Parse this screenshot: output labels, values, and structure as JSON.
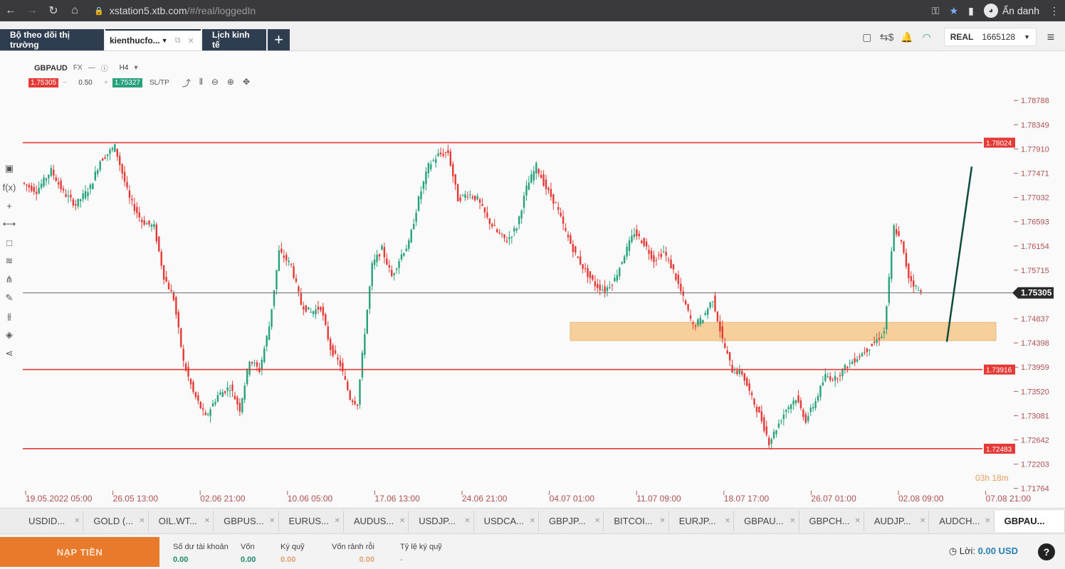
{
  "browser": {
    "url_host": "xstation5.xtb.com",
    "url_path": "/#/real/loggedIn",
    "profile_label": "Ẩn danh"
  },
  "appbar": {
    "tab_market": "Bộ theo dõi thị trường",
    "tab_user": "kienthucfo...",
    "tab_calendar": "Lịch kinh tế",
    "add_tab": "+",
    "account_type": "REAL",
    "account_number": "1665128"
  },
  "chart": {
    "symbol": "GBPAUD",
    "market": "FX",
    "timeframe": "H4",
    "sell_price": "1.75305",
    "buy_price": "1.75327",
    "volume": "0.50",
    "sltp_label": "SL/TP",
    "timer": "03h 18m"
  },
  "chart_data": {
    "type": "candlestick",
    "title": "",
    "ylim": [
      1.7176,
      1.7901
    ],
    "price_ticks": [
      "1.78788",
      "1.78349",
      "1.77910",
      "1.77471",
      "1.77032",
      "1.76593",
      "1.76154",
      "1.75715",
      "1.75305",
      "1.74837",
      "1.74398",
      "1.73959",
      "1.73520",
      "1.73081",
      "1.72642",
      "1.72203",
      "1.71764"
    ],
    "time_ticks": [
      "19.05.2022 05:00",
      "26.05 13:00",
      "02.06 21:00",
      "10.06 05:00",
      "17.06 13:00",
      "24.06 21:00",
      "04.07 01:00",
      "11.07 09:00",
      "18.07 17:00",
      "26.07 01:00",
      "02.08 09:00",
      "07.08 21:00"
    ],
    "horizontal_levels": [
      {
        "value": 1.78024,
        "label": "1.78024",
        "color": "#e53935"
      },
      {
        "value": 1.73916,
        "label": "1.73916",
        "color": "#e53935"
      },
      {
        "value": 1.72483,
        "label": "1.72483",
        "color": "#e53935"
      }
    ],
    "current_price": {
      "value": 1.75305,
      "label": "1.75305"
    },
    "zone": {
      "from": 1.7444,
      "to": 1.7477,
      "color": "#f5c17a"
    },
    "path_points": [
      [
        0,
        1.773
      ],
      [
        6,
        1.7715
      ],
      [
        12,
        1.7752
      ],
      [
        17,
        1.7712
      ],
      [
        22,
        1.769
      ],
      [
        28,
        1.7722
      ],
      [
        32,
        1.777
      ],
      [
        38,
        1.7795
      ],
      [
        44,
        1.77
      ],
      [
        49,
        1.766
      ],
      [
        54,
        1.765
      ],
      [
        58,
        1.756
      ],
      [
        62,
        1.752
      ],
      [
        66,
        1.7405
      ],
      [
        70,
        1.735
      ],
      [
        75,
        1.7305
      ],
      [
        80,
        1.7345
      ],
      [
        85,
        1.736
      ],
      [
        89,
        1.732
      ],
      [
        93,
        1.741
      ],
      [
        97,
        1.739
      ],
      [
        101,
        1.747
      ],
      [
        105,
        1.7605
      ],
      [
        110,
        1.758
      ],
      [
        114,
        1.751
      ],
      [
        118,
        1.7495
      ],
      [
        122,
        1.7505
      ],
      [
        126,
        1.743
      ],
      [
        130,
        1.74
      ],
      [
        134,
        1.734
      ],
      [
        137,
        1.733
      ],
      [
        140,
        1.746
      ],
      [
        143,
        1.758
      ],
      [
        147,
        1.761
      ],
      [
        151,
        1.756
      ],
      [
        155,
        1.76
      ],
      [
        158,
        1.762
      ],
      [
        162,
        1.77
      ],
      [
        166,
        1.776
      ],
      [
        170,
        1.778
      ],
      [
        174,
        1.7785
      ],
      [
        178,
        1.77
      ],
      [
        182,
        1.771
      ],
      [
        186,
        1.77
      ],
      [
        190,
        1.7665
      ],
      [
        194,
        1.764
      ],
      [
        198,
        1.7625
      ],
      [
        202,
        1.765
      ],
      [
        206,
        1.772
      ],
      [
        210,
        1.776
      ],
      [
        214,
        1.772
      ],
      [
        218,
        1.769
      ],
      [
        222,
        1.764
      ],
      [
        226,
        1.76
      ],
      [
        230,
        1.757
      ],
      [
        234,
        1.7545
      ],
      [
        238,
        1.7535
      ],
      [
        242,
        1.7555
      ],
      [
        246,
        1.76
      ],
      [
        250,
        1.764
      ],
      [
        254,
        1.762
      ],
      [
        258,
        1.759
      ],
      [
        262,
        1.7605
      ],
      [
        266,
        1.757
      ],
      [
        270,
        1.752
      ],
      [
        274,
        1.747
      ],
      [
        278,
        1.7485
      ],
      [
        282,
        1.752
      ],
      [
        286,
        1.7445
      ],
      [
        290,
        1.739
      ],
      [
        294,
        1.7385
      ],
      [
        298,
        1.734
      ],
      [
        302,
        1.73
      ],
      [
        305,
        1.726
      ],
      [
        308,
        1.7285
      ],
      [
        312,
        1.732
      ],
      [
        316,
        1.734
      ],
      [
        320,
        1.73
      ],
      [
        324,
        1.7335
      ],
      [
        328,
        1.738
      ],
      [
        332,
        1.7375
      ],
      [
        336,
        1.7395
      ],
      [
        340,
        1.741
      ],
      [
        344,
        1.7425
      ],
      [
        348,
        1.744
      ],
      [
        352,
        1.746
      ],
      [
        356,
        1.765
      ],
      [
        359,
        1.762
      ],
      [
        362,
        1.756
      ],
      [
        365,
        1.754
      ],
      [
        367,
        1.753
      ]
    ]
  },
  "symbols": [
    "USDID...",
    "GOLD (...",
    "OIL.WT...",
    "GBPUS...",
    "EURUS...",
    "AUDUS...",
    "USDJP...",
    "USDCA...",
    "GBPJP...",
    "BITCOI...",
    "EURJP...",
    "GBPAU...",
    "GBPCH...",
    "AUDJP...",
    "AUDCH...",
    "GBPAU..."
  ],
  "bottom": {
    "deposit": "NẠP TIỀN",
    "balance_label": "Số dư tài khoản",
    "balance_value": "0.00",
    "equity_label": "Vốn",
    "equity_value": "0.00",
    "margin_label": "Ký quỹ",
    "margin_value": "0.00",
    "free_label": "Vốn rảnh rỗi",
    "free_value": "0.00",
    "ratio_label": "Tỷ lệ ký quỹ",
    "ratio_value": "-",
    "profit_label": "Lời:",
    "profit_value": "0.00 USD",
    "help": "?"
  },
  "colors": {
    "bull": "#26a17b",
    "bear": "#e53935",
    "accent": "#e97a2c",
    "trend_arrow": "#0f4a3c"
  }
}
